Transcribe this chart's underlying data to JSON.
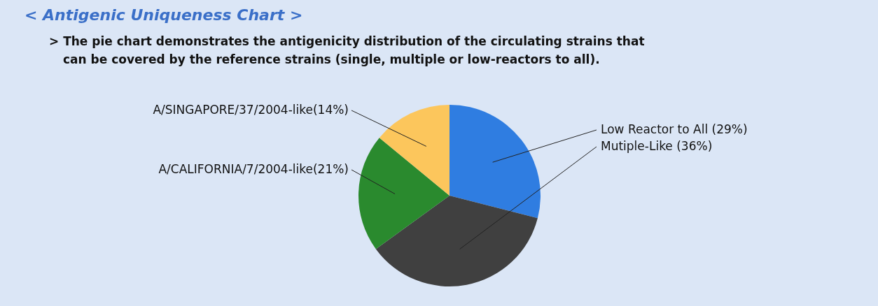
{
  "chart_data": {
    "type": "pie",
    "title": "< Antigenic Uniqueness Chart >",
    "subtitle": "> The pie chart demonstrates the antigenicity distribution of the circulating strains that can be covered by the reference strains (single, multiple or low-reactors to all).",
    "categories": [
      "Low Reactor to All (29%)",
      "Mutiple-Like (36%)",
      "A/CALIFORNIA/7/2004-like(21%)",
      "A/SINGAPORE/37/2004-like(14%)"
    ],
    "values": [
      29,
      36,
      21,
      14
    ],
    "colors": [
      "#2f7de1",
      "#404040",
      "#2a8a2e",
      "#fcc65c"
    ]
  }
}
